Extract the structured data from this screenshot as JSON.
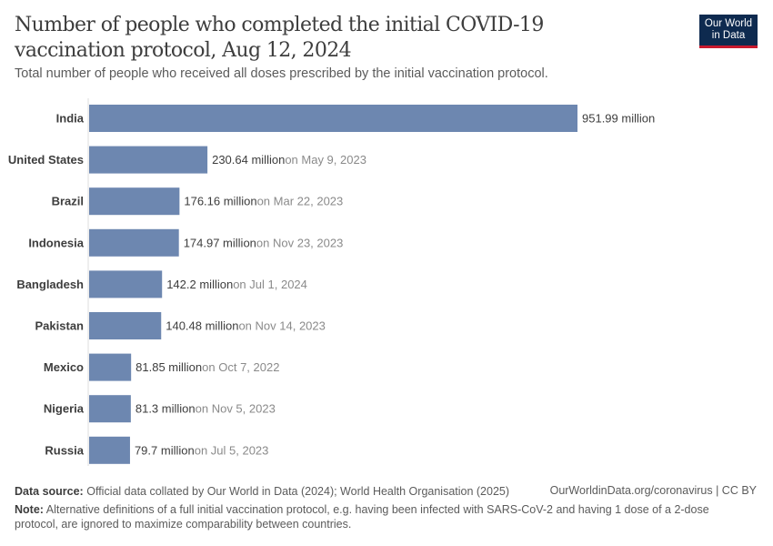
{
  "title": "Number of people who completed the initial COVID-19 vaccination protocol, Aug 12, 2024",
  "subtitle": "Total number of people who received all doses prescribed by the initial vaccination protocol.",
  "logo": {
    "line1": "Our World",
    "line2": "in Data"
  },
  "footer": {
    "source_label": "Data source:",
    "source": "Official data collated by Our World in Data (2024); World Health Organisation (2025)",
    "link": "OurWorldinData.org/coronavirus | CC BY",
    "note_label": "Note:",
    "note": "Alternative definitions of a full initial vaccination protocol, e.g. having been infected with SARS-CoV-2 and having 1 dose of a 2-dose protocol, are ignored to maximize comparability between countries."
  },
  "colors": {
    "bar": "#6d87b0",
    "label": "#3d3d3d",
    "date": "#8a8a8a"
  },
  "chart_data": {
    "type": "bar",
    "orientation": "horizontal",
    "unit": "million",
    "categories": [
      "India",
      "United States",
      "Brazil",
      "Indonesia",
      "Bangladesh",
      "Pakistan",
      "Mexico",
      "Nigeria",
      "Russia"
    ],
    "values": [
      951.99,
      230.64,
      176.16,
      174.97,
      142.2,
      140.48,
      81.85,
      81.3,
      79.7
    ],
    "value_labels": [
      "951.99 million",
      "230.64 million",
      "176.16 million",
      "174.97 million",
      "142.2 million",
      "140.48 million",
      "81.85 million",
      "81.3 million",
      "79.7 million"
    ],
    "date_labels": [
      "",
      "on May 9, 2023",
      "on Mar 22, 2023",
      "on Nov 23, 2023",
      "on Jul 1, 2024",
      "on Nov 14, 2023",
      "on Oct 7, 2022",
      "on Nov 5, 2023",
      "on Jul 5, 2023"
    ],
    "xlim": [
      0,
      951.99
    ]
  }
}
